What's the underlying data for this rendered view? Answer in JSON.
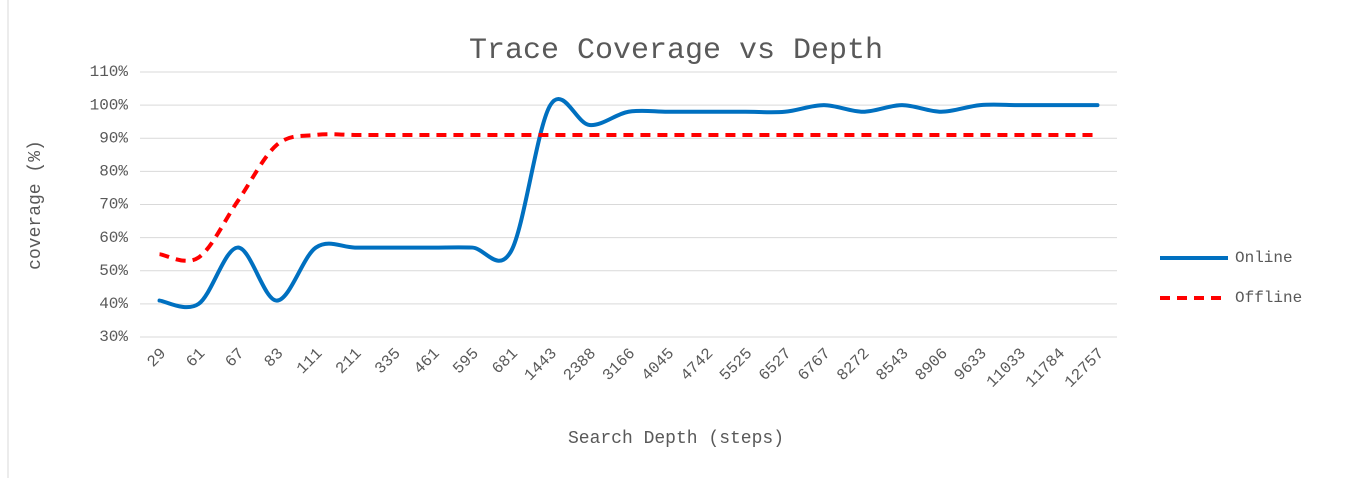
{
  "chart_data": {
    "type": "line",
    "title": "Trace Coverage vs Depth",
    "x_label": "Search Depth (steps)",
    "y_label": "coverage (%)",
    "categories": [
      "29",
      "61",
      "67",
      "83",
      "111",
      "211",
      "335",
      "461",
      "595",
      "681",
      "1443",
      "2388",
      "3166",
      "4045",
      "4742",
      "5525",
      "6527",
      "6767",
      "8272",
      "8543",
      "8906",
      "9633",
      "11033",
      "11784",
      "12757"
    ],
    "series": [
      {
        "name": "Online",
        "color": "#0070c0",
        "dash": false,
        "values": [
          41,
          40,
          57,
          41,
          57,
          57,
          57,
          57,
          57,
          56,
          100,
          94,
          98,
          98,
          98,
          98,
          98,
          100,
          98,
          100,
          98,
          100,
          100,
          100,
          100
        ]
      },
      {
        "name": "Offline",
        "color": "#ff0000",
        "dash": true,
        "values": [
          55,
          54,
          71,
          88,
          91,
          91,
          91,
          91,
          91,
          91,
          91,
          91,
          91,
          91,
          91,
          91,
          91,
          91,
          91,
          91,
          91,
          91,
          91,
          91,
          91
        ]
      }
    ],
    "ylim": [
      30,
      110
    ],
    "yticks": [
      {
        "value": 30,
        "label": "30%"
      },
      {
        "value": 40,
        "label": "40%"
      },
      {
        "value": 50,
        "label": "50%"
      },
      {
        "value": 60,
        "label": "60%"
      },
      {
        "value": 70,
        "label": "70%"
      },
      {
        "value": 80,
        "label": "80%"
      },
      {
        "value": 90,
        "label": "90%"
      },
      {
        "value": 100,
        "label": "100%"
      },
      {
        "value": 110,
        "label": "110%"
      }
    ],
    "grid": true,
    "legend": "right"
  }
}
